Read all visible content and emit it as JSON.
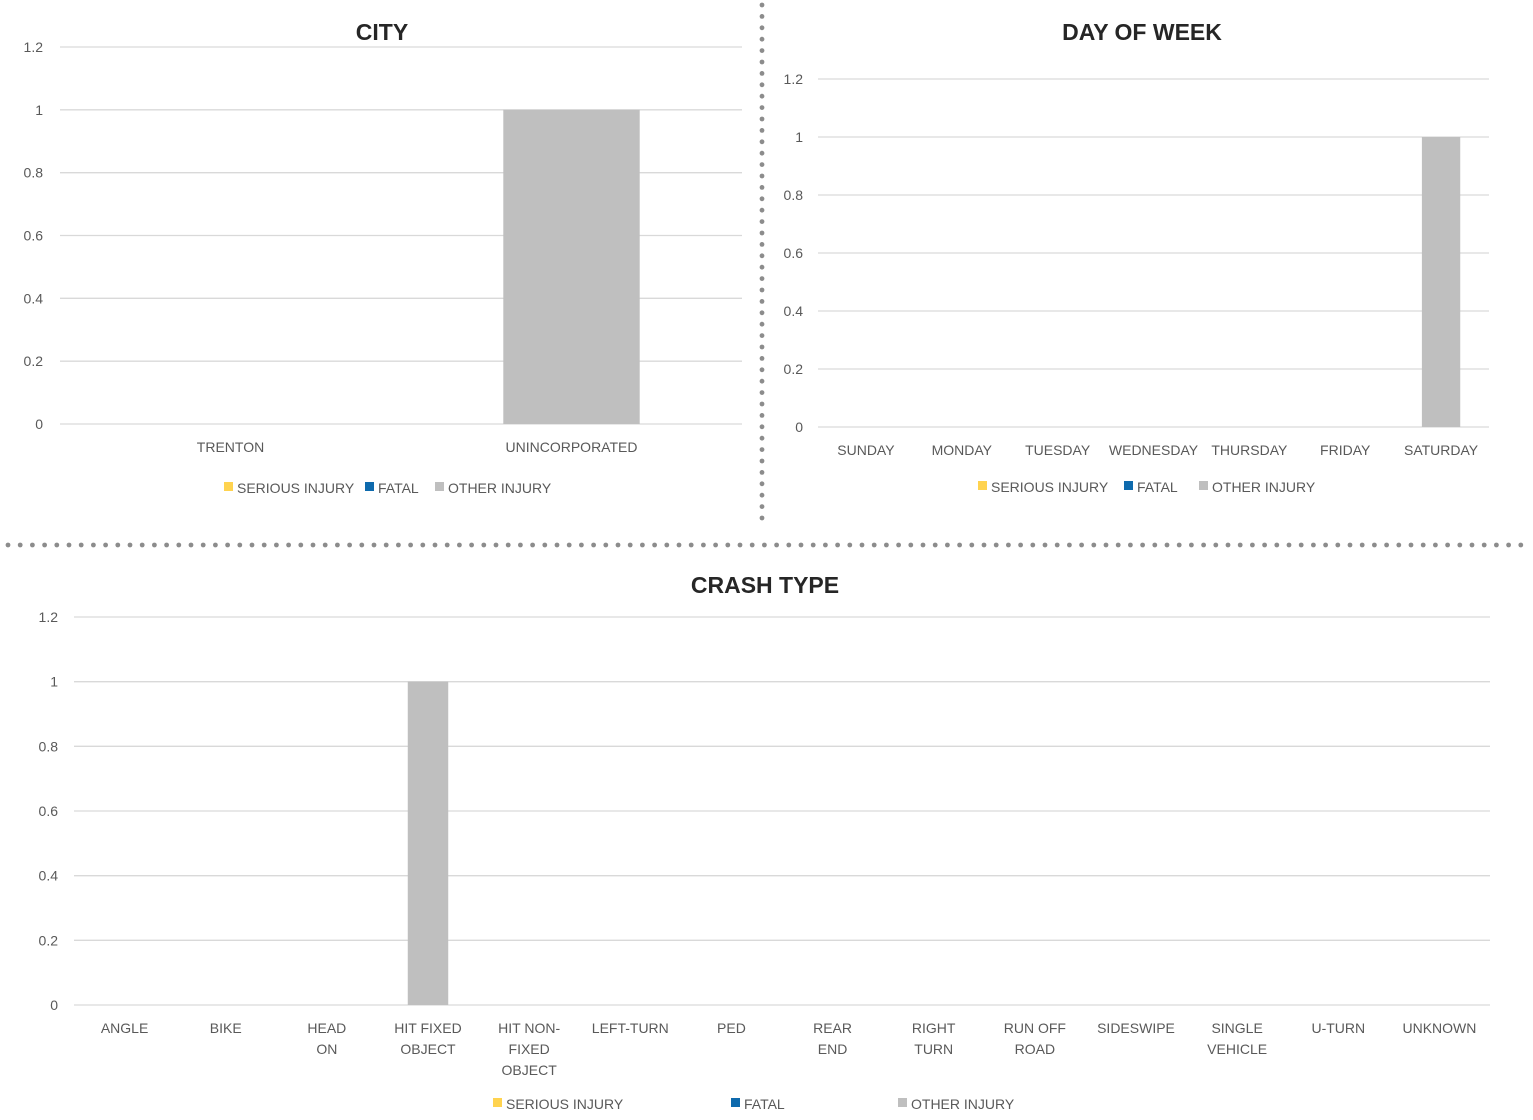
{
  "colors": {
    "SERIOUS INJURY": "#ffd34f",
    "FATAL": "#0e6aad",
    "OTHER INJURY": "#bfbfbf",
    "gridline": "#d9d9d9",
    "separator": "#8c8c8c"
  },
  "chart_data": [
    {
      "type": "bar",
      "title": "CITY",
      "categories": [
        "TRENTON",
        "UNINCORPORATED"
      ],
      "series": [
        {
          "name": "SERIOUS INJURY",
          "values": [
            0,
            0
          ]
        },
        {
          "name": "FATAL",
          "values": [
            0,
            0
          ]
        },
        {
          "name": "OTHER INJURY",
          "values": [
            0,
            1
          ]
        }
      ],
      "yticks": [
        "0",
        "0.2",
        "0.4",
        "0.6",
        "0.8",
        "1",
        "1.2"
      ],
      "ylim": [
        0,
        1.2
      ],
      "grid": true,
      "legend_position": "bottom"
    },
    {
      "type": "bar",
      "title": "DAY OF WEEK",
      "categories": [
        "SUNDAY",
        "MONDAY",
        "TUESDAY",
        "WEDNESDAY",
        "THURSDAY",
        "FRIDAY",
        "SATURDAY"
      ],
      "series": [
        {
          "name": "SERIOUS INJURY",
          "values": [
            0,
            0,
            0,
            0,
            0,
            0,
            0
          ]
        },
        {
          "name": "FATAL",
          "values": [
            0,
            0,
            0,
            0,
            0,
            0,
            0
          ]
        },
        {
          "name": "OTHER INJURY",
          "values": [
            0,
            0,
            0,
            0,
            0,
            0,
            1
          ]
        }
      ],
      "yticks": [
        "0",
        "0.2",
        "0.4",
        "0.6",
        "0.8",
        "1",
        "1.2"
      ],
      "ylim": [
        0,
        1.2
      ],
      "grid": true,
      "legend_position": "bottom"
    },
    {
      "type": "bar",
      "title": "CRASH TYPE",
      "categories": [
        [
          "ANGLE"
        ],
        [
          "BIKE"
        ],
        [
          "HEAD",
          "ON"
        ],
        [
          "HIT FIXED",
          "OBJECT"
        ],
        [
          "HIT NON-",
          "FIXED",
          "OBJECT"
        ],
        [
          "LEFT-TURN"
        ],
        [
          "PED"
        ],
        [
          "REAR",
          "END"
        ],
        [
          "RIGHT",
          "TURN"
        ],
        [
          "RUN OFF",
          "ROAD"
        ],
        [
          "SIDESWIPE"
        ],
        [
          "SINGLE",
          "VEHICLE"
        ],
        [
          "U-TURN"
        ],
        [
          "UNKNOWN"
        ]
      ],
      "series": [
        {
          "name": "SERIOUS INJURY",
          "values": [
            0,
            0,
            0,
            0,
            0,
            0,
            0,
            0,
            0,
            0,
            0,
            0,
            0,
            0
          ]
        },
        {
          "name": "FATAL",
          "values": [
            0,
            0,
            0,
            0,
            0,
            0,
            0,
            0,
            0,
            0,
            0,
            0,
            0,
            0
          ]
        },
        {
          "name": "OTHER INJURY",
          "values": [
            0,
            0,
            0,
            1,
            0,
            0,
            0,
            0,
            0,
            0,
            0,
            0,
            0,
            0
          ]
        }
      ],
      "yticks": [
        "0",
        "0.2",
        "0.4",
        "0.6",
        "0.8",
        "1",
        "1.2"
      ],
      "ylim": [
        0,
        1.2
      ],
      "grid": true,
      "legend_position": "bottom"
    }
  ]
}
